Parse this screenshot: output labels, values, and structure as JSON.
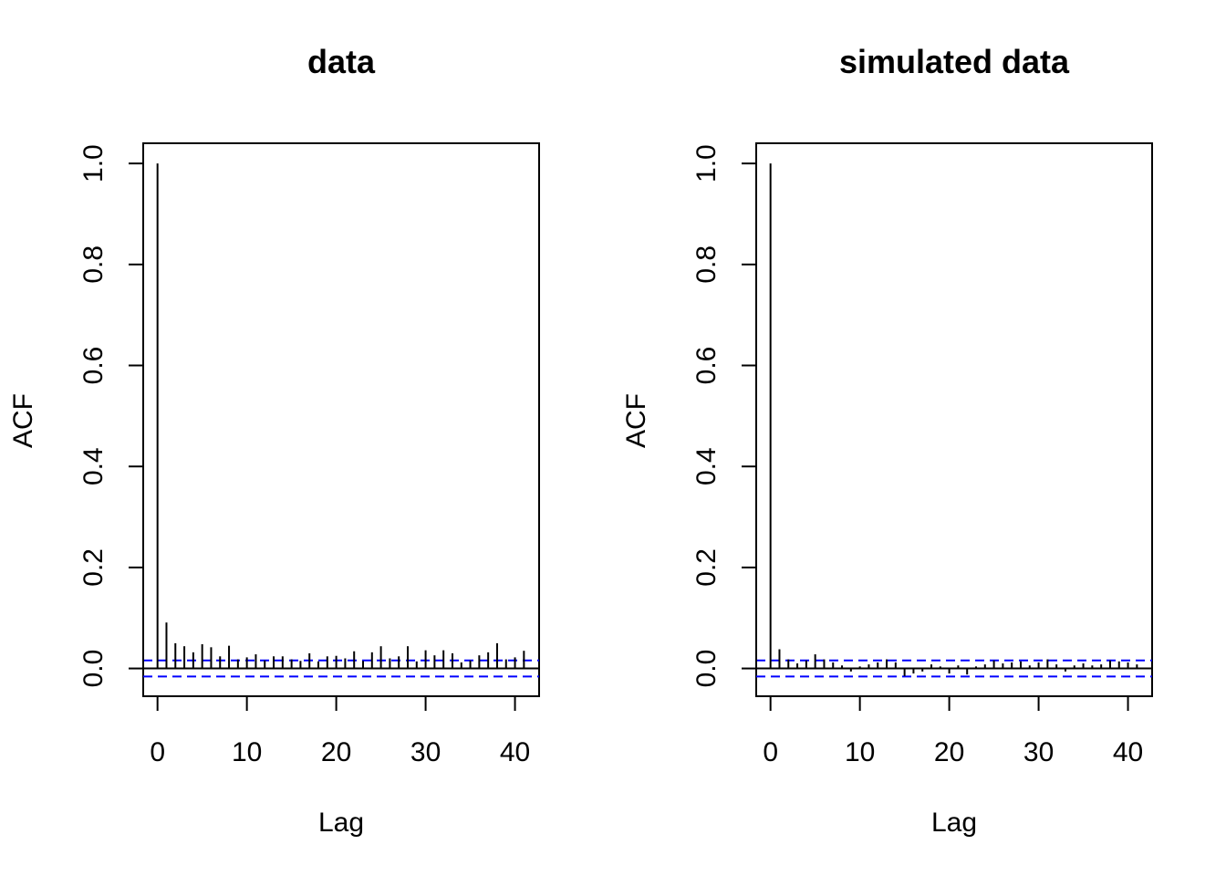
{
  "chart_data": [
    {
      "type": "bar",
      "title": "data",
      "xlabel": "Lag",
      "ylabel": "ACF",
      "xlim": [
        -1.6,
        42.7
      ],
      "ylim": [
        -0.055,
        1.04
      ],
      "xticks": [
        0,
        10,
        20,
        30,
        40
      ],
      "xtick_labels": [
        "0",
        "10",
        "20",
        "30",
        "40"
      ],
      "yticks": [
        0.0,
        0.2,
        0.4,
        0.6,
        0.8,
        1.0
      ],
      "ytick_labels": [
        "0.0",
        "0.2",
        "0.4",
        "0.6",
        "0.8",
        "1.0"
      ],
      "grid": false,
      "confidence_band": [
        0.016,
        -0.016
      ],
      "band_color": "#0000ff",
      "lags": [
        0,
        1,
        2,
        3,
        4,
        5,
        6,
        7,
        8,
        9,
        10,
        11,
        12,
        13,
        14,
        15,
        16,
        17,
        18,
        19,
        20,
        21,
        22,
        23,
        24,
        25,
        26,
        27,
        28,
        29,
        30,
        31,
        32,
        33,
        34,
        35,
        36,
        37,
        38,
        39,
        40,
        41
      ],
      "values": [
        1.0,
        0.091,
        0.05,
        0.044,
        0.032,
        0.048,
        0.042,
        0.024,
        0.045,
        0.018,
        0.022,
        0.028,
        0.016,
        0.024,
        0.024,
        0.018,
        0.015,
        0.03,
        0.014,
        0.024,
        0.025,
        0.02,
        0.034,
        0.015,
        0.032,
        0.044,
        0.02,
        0.024,
        0.044,
        0.014,
        0.036,
        0.026,
        0.036,
        0.03,
        0.012,
        0.016,
        0.026,
        0.032,
        0.05,
        0.018,
        0.022,
        0.035
      ]
    },
    {
      "type": "bar",
      "title": "simulated data",
      "xlabel": "Lag",
      "ylabel": "ACF",
      "xlim": [
        -1.6,
        42.7
      ],
      "ylim": [
        -0.055,
        1.04
      ],
      "xticks": [
        0,
        10,
        20,
        30,
        40
      ],
      "xtick_labels": [
        "0",
        "10",
        "20",
        "30",
        "40"
      ],
      "yticks": [
        0.0,
        0.2,
        0.4,
        0.6,
        0.8,
        1.0
      ],
      "ytick_labels": [
        "0.0",
        "0.2",
        "0.4",
        "0.6",
        "0.8",
        "1.0"
      ],
      "grid": false,
      "confidence_band": [
        0.016,
        -0.016
      ],
      "band_color": "#0000ff",
      "lags": [
        0,
        1,
        2,
        3,
        4,
        5,
        6,
        7,
        8,
        9,
        10,
        11,
        12,
        13,
        14,
        15,
        16,
        17,
        18,
        19,
        20,
        21,
        22,
        23,
        24,
        25,
        26,
        27,
        28,
        29,
        30,
        31,
        32,
        33,
        34,
        35,
        36,
        37,
        38,
        39,
        40,
        41
      ],
      "values": [
        1.0,
        0.038,
        0.018,
        0.01,
        0.016,
        0.028,
        0.018,
        0.012,
        0.006,
        -0.006,
        0.004,
        0.008,
        0.012,
        0.018,
        0.012,
        -0.015,
        -0.01,
        -0.006,
        0.008,
        0.004,
        -0.01,
        0.006,
        -0.012,
        0.004,
        0.008,
        0.016,
        0.01,
        0.012,
        0.014,
        0.006,
        0.012,
        0.018,
        0.008,
        -0.006,
        0.006,
        0.01,
        0.006,
        0.008,
        0.016,
        0.014,
        0.012,
        0.008
      ]
    }
  ]
}
